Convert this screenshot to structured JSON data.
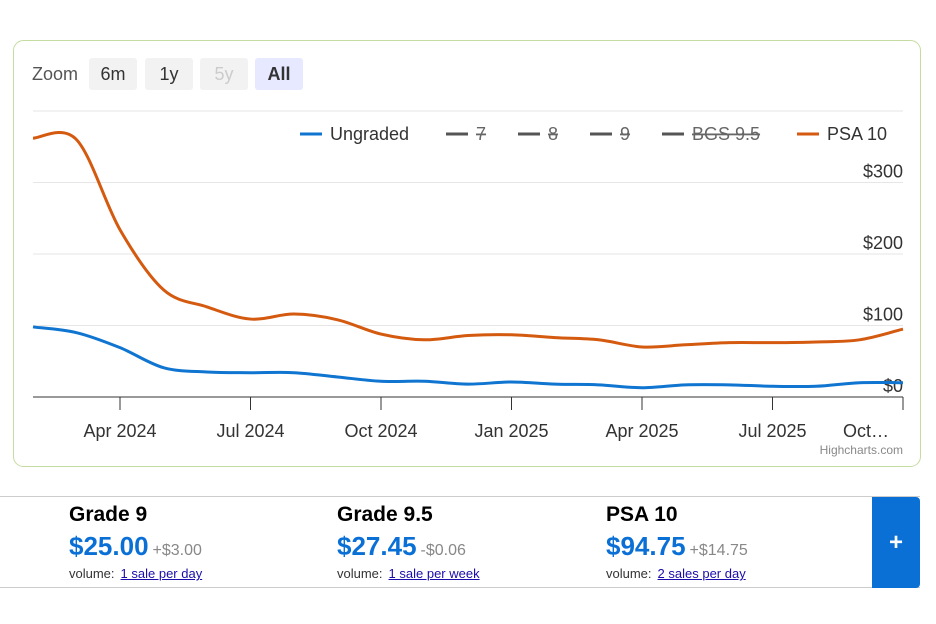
{
  "zoom": {
    "label": "Zoom",
    "buttons": [
      "6m",
      "1y",
      "5y",
      "All"
    ],
    "disabled": "5y",
    "selected": "All"
  },
  "chart_data": {
    "type": "line",
    "x": [
      "Feb 2024",
      "Mar 2024",
      "Apr 2024",
      "May 2024",
      "Jun 2024",
      "Jul 2024",
      "Aug 2024",
      "Sep 2024",
      "Oct 2024",
      "Nov 2024",
      "Dec 2024",
      "Jan 2025",
      "Feb 2025",
      "Mar 2025",
      "Apr 2025",
      "May 2025",
      "Jun 2025",
      "Jul 2025",
      "Aug 2025",
      "Sep 2025",
      "Oct 2025"
    ],
    "xticks": [
      "Apr 2024",
      "Jul 2024",
      "Oct 2024",
      "Jan 2025",
      "Apr 2025",
      "Jul 2025",
      {
        "value": "Oct 2025",
        "label": "Oct…"
      }
    ],
    "ylim": [
      0,
      400
    ],
    "yticks": [
      {
        "value": 0,
        "label": "$0"
      },
      {
        "value": 100,
        "label": "$100"
      },
      {
        "value": 200,
        "label": "$200"
      },
      {
        "value": 300,
        "label": "$300"
      }
    ],
    "grid": true,
    "series": [
      {
        "name": "Ungraded",
        "color": "#0f75d0",
        "visible": true,
        "values": [
          98,
          90,
          69,
          41,
          35,
          34,
          34,
          28,
          22,
          22,
          18,
          21,
          18,
          17,
          13,
          17,
          17,
          15,
          15,
          20,
          20
        ]
      },
      {
        "name": "7",
        "color": "#555555",
        "visible": false,
        "values": [
          null,
          null,
          null,
          null,
          null,
          null,
          null,
          null,
          null,
          null,
          null,
          null,
          null,
          null,
          null,
          null,
          null,
          null,
          null,
          null,
          null
        ]
      },
      {
        "name": "8",
        "color": "#555555",
        "visible": false,
        "values": [
          null,
          null,
          null,
          null,
          null,
          null,
          null,
          null,
          null,
          null,
          null,
          null,
          null,
          null,
          null,
          null,
          null,
          null,
          null,
          null,
          null
        ]
      },
      {
        "name": "9",
        "color": "#555555",
        "visible": false,
        "values": [
          null,
          null,
          null,
          null,
          null,
          null,
          null,
          null,
          null,
          null,
          null,
          null,
          null,
          null,
          null,
          null,
          null,
          null,
          null,
          null,
          null
        ]
      },
      {
        "name": "BGS 9.5",
        "color": "#555555",
        "visible": false,
        "values": [
          null,
          null,
          null,
          null,
          null,
          null,
          null,
          null,
          null,
          null,
          null,
          null,
          null,
          null,
          null,
          null,
          null,
          null,
          null,
          null,
          null
        ]
      },
      {
        "name": "PSA 10",
        "color": "#d45a10",
        "visible": true,
        "values": [
          362,
          360,
          234,
          150,
          126,
          109,
          116,
          108,
          88,
          80,
          86,
          87,
          83,
          80,
          70,
          73,
          76,
          76,
          77,
          80,
          95
        ]
      }
    ],
    "credits": "Highcharts.com"
  },
  "cards": [
    {
      "title": "Grade 9",
      "price": "$25.00",
      "change": "+$3.00",
      "volume_label": "volume:",
      "volume_link": "1 sale per day"
    },
    {
      "title": "Grade 9.5",
      "price": "$27.45",
      "change": "-$0.06",
      "volume_label": "volume:",
      "volume_link": "1 sale per week"
    },
    {
      "title": "PSA 10",
      "price": "$94.75",
      "change": "+$14.75",
      "volume_label": "volume:",
      "volume_link": "2 sales per day"
    }
  ],
  "more_button": "+"
}
